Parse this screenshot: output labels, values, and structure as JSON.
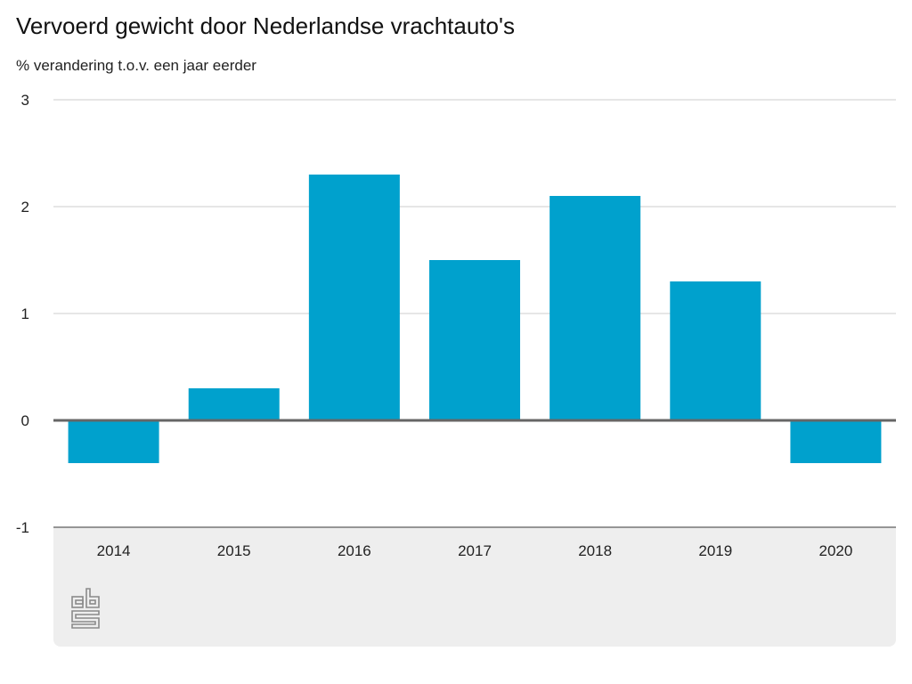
{
  "title": "Vervoerd gewicht door Nederlandse vrachtauto's",
  "subtitle": "% verandering t.o.v. een jaar eerder",
  "logo_text": "cbs",
  "colors": {
    "bar": "#00a1cd",
    "grid": "#cccccc",
    "zero_line": "#666666",
    "footer_bg": "#eeeeee"
  },
  "chart_data": {
    "type": "bar",
    "title": "Vervoerd gewicht door Nederlandse vrachtauto's",
    "subtitle": "% verandering t.o.v. een jaar eerder",
    "xlabel": "",
    "ylabel": "% verandering t.o.v. een jaar eerder",
    "categories": [
      "2014",
      "2015",
      "2016",
      "2017",
      "2018",
      "2019",
      "2020"
    ],
    "values": [
      -0.4,
      0.3,
      2.3,
      1.5,
      2.1,
      1.3,
      -0.4
    ],
    "ylim": [
      -1,
      3
    ],
    "yticks": [
      "3",
      "2",
      "1",
      "0",
      "-1"
    ],
    "ytick_values": [
      3,
      2,
      1,
      0,
      -1
    ],
    "grid": true,
    "legend": "none"
  }
}
